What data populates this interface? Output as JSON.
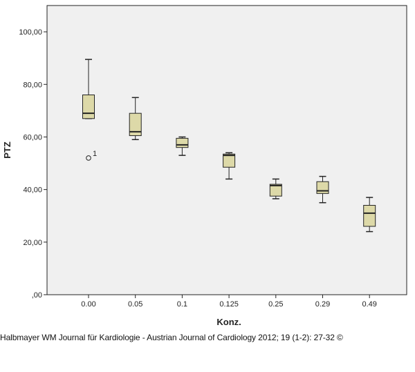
{
  "chart_data": {
    "type": "box",
    "xlabel": "Konz.",
    "ylabel": "PTZ",
    "ylim": [
      0,
      110
    ],
    "yticks": [
      0,
      20,
      40,
      60,
      80,
      100
    ],
    "ytick_labels": [
      ",00",
      "20,00",
      "40,00",
      "60,00",
      "80,00",
      "100,00"
    ],
    "categories": [
      "0.00",
      "0.05",
      "0.1",
      "0.125",
      "0.25",
      "0.29",
      "0.49"
    ],
    "boxes": [
      {
        "min": 67,
        "q1": 67,
        "median": 69,
        "q3": 76,
        "max": 89.5
      },
      {
        "min": 59,
        "q1": 60.5,
        "median": 62,
        "q3": 69,
        "max": 75
      },
      {
        "min": 53,
        "q1": 56,
        "median": 57,
        "q3": 59.5,
        "max": 60
      },
      {
        "min": 44,
        "q1": 48.5,
        "median": 53,
        "q3": 53.5,
        "max": 54
      },
      {
        "min": 36.5,
        "q1": 37.5,
        "median": 41.5,
        "q3": 42,
        "max": 44
      },
      {
        "min": 35,
        "q1": 38.5,
        "median": 39.5,
        "q3": 43,
        "max": 45
      },
      {
        "min": 24,
        "q1": 26,
        "median": 31,
        "q3": 34,
        "max": 37
      }
    ],
    "outliers": [
      {
        "category": "0.00",
        "value": 52,
        "label": "1"
      }
    ],
    "colors": {
      "box_fill": "#ddd9a8",
      "plot_bg": "#f0f0f0",
      "line": "#222222"
    }
  },
  "caption": "Halbmayer WM Journal für Kardiologie - Austrian Journal of Cardiology 2012; 19 (1-2): 27-32 ©"
}
